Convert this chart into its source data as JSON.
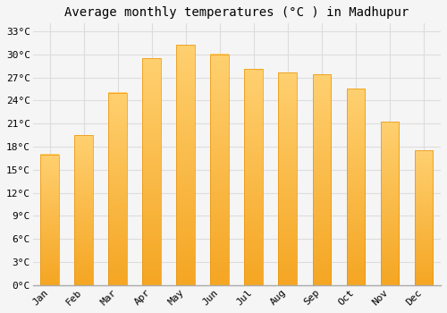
{
  "title": "Average monthly temperatures (°C ) in Madhupur",
  "months": [
    "Jan",
    "Feb",
    "Mar",
    "Apr",
    "May",
    "Jun",
    "Jul",
    "Aug",
    "Sep",
    "Oct",
    "Nov",
    "Dec"
  ],
  "values": [
    17.0,
    19.5,
    25.0,
    29.5,
    31.2,
    30.0,
    28.1,
    27.6,
    27.4,
    25.5,
    21.2,
    17.5
  ],
  "bar_color_bottom": "#F5A623",
  "bar_color_top": "#FFD070",
  "ylim": [
    0,
    34
  ],
  "yticks": [
    0,
    3,
    6,
    9,
    12,
    15,
    18,
    21,
    24,
    27,
    30,
    33
  ],
  "ytick_labels": [
    "0°C",
    "3°C",
    "6°C",
    "9°C",
    "12°C",
    "15°C",
    "18°C",
    "21°C",
    "24°C",
    "27°C",
    "30°C",
    "33°C"
  ],
  "background_color": "#f5f5f5",
  "plot_bg_color": "#f5f5f5",
  "grid_color": "#dddddd",
  "title_fontsize": 10,
  "tick_fontsize": 8,
  "font_family": "monospace",
  "bar_width": 0.55,
  "bar_edge_color": "#E8930A",
  "bar_edge_width": 0.5
}
